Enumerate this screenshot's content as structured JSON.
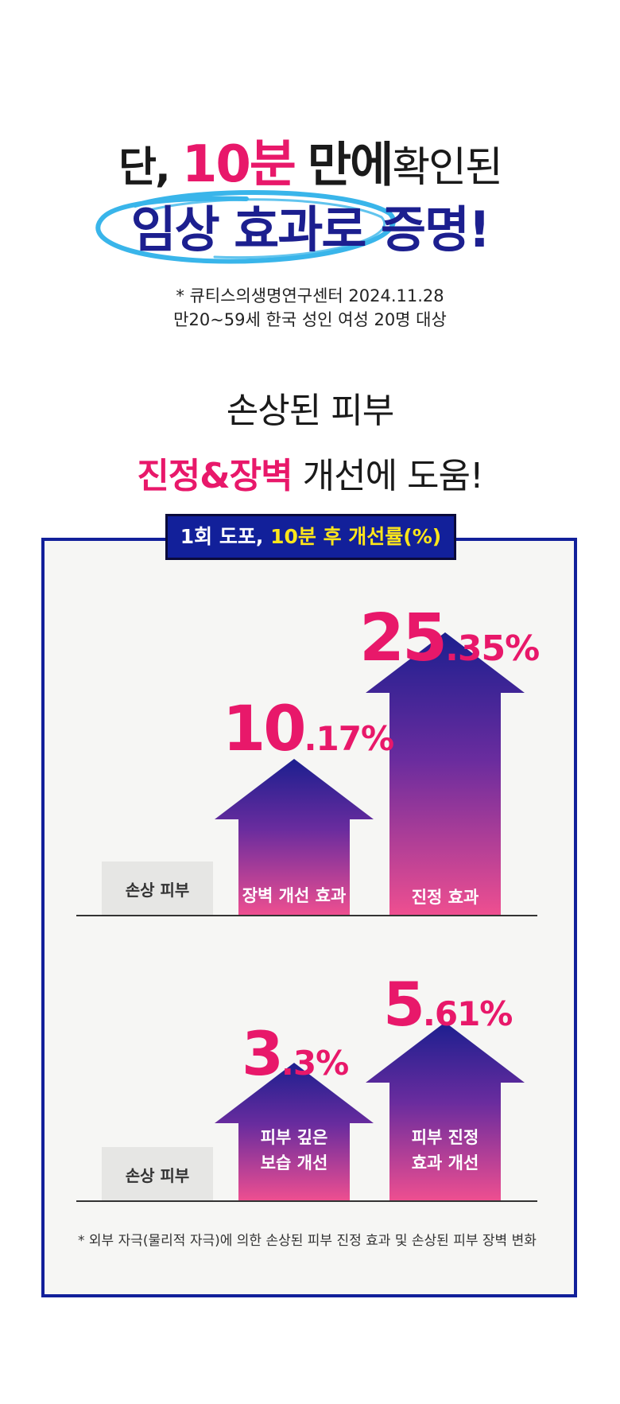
{
  "headline": {
    "line1_pre": "단,",
    "line1_highlight": "10분",
    "line1_mid": "만에",
    "line1_post": "확인된",
    "line2": "임상 효과로 증명!"
  },
  "source": {
    "line1": "* 큐티스의생명연구센터 2024.11.28",
    "line2": "만20~59세 한국 성인 여성 20명 대상"
  },
  "subhead": {
    "line1": "손상된 피부",
    "line2_highlight": "진정&장벽",
    "line2_rest": "개선에 도움!"
  },
  "panel_tag": {
    "white": "1회 도포,",
    "yellow": "10분 후 개선률(%)"
  },
  "chart_data": [
    {
      "type": "bar",
      "categories": [
        "손상 피부",
        "장벽 개선 효과",
        "진정 효과"
      ],
      "values": [
        0,
        10.17,
        25.35
      ],
      "value_labels": [
        {
          "int": "10",
          "dec": ".17%"
        },
        {
          "int": "25",
          "dec": ".35%"
        }
      ]
    },
    {
      "type": "bar",
      "categories": [
        "손상 피부",
        "피부 깊은 보습 개선",
        "피부 진정 효과 개선"
      ],
      "values": [
        0,
        3.3,
        5.61
      ],
      "value_labels": [
        {
          "int": "3",
          "dec": ".3%"
        },
        {
          "int": "5",
          "dec": ".61%"
        }
      ]
    }
  ],
  "chart1": {
    "base_label": "손상 피부",
    "bar1_label": "장벽 개선 효과",
    "bar2_label": "진정 효과"
  },
  "chart2": {
    "base_label": "손상 피부",
    "bar1_label_l1": "피부 깊은",
    "bar1_label_l2": "보습 개선",
    "bar2_label_l1": "피부 진정",
    "bar2_label_l2": "효과 개선"
  },
  "footnote": "* 외부 자극(물리적 자극)에 의한 손상된 피부 진정 효과 및 손상된 피부 장벽 변화",
  "colors": {
    "pink": "#e8186a",
    "navy": "#12209a",
    "arrow_top": "#1c1f8f",
    "arrow_bottom": "#ef4f90",
    "highlight_yellow": "#ffe61a",
    "scribble_blue": "#39b5ea"
  }
}
